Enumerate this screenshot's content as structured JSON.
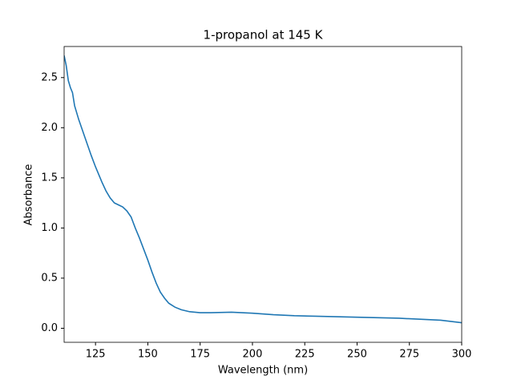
{
  "chart_data": {
    "type": "line",
    "title": "1-propanol at 145 K",
    "x_label": "Wavelength (nm)",
    "y_label": "Absorbance",
    "x": [
      110,
      111,
      112,
      113,
      114,
      115,
      117,
      120,
      123,
      125,
      128,
      130,
      132,
      134,
      136,
      138,
      140,
      142,
      144,
      146,
      148,
      150,
      152,
      154,
      156,
      158,
      160,
      163,
      166,
      170,
      175,
      180,
      190,
      200,
      210,
      220,
      230,
      240,
      250,
      260,
      270,
      280,
      290,
      300
    ],
    "series": [
      {
        "name": "1-propanol",
        "color": "#1f77b4",
        "values": [
          2.72,
          2.62,
          2.47,
          2.4,
          2.35,
          2.22,
          2.08,
          1.9,
          1.72,
          1.61,
          1.46,
          1.37,
          1.3,
          1.25,
          1.23,
          1.21,
          1.17,
          1.11,
          1.0,
          0.9,
          0.79,
          0.68,
          0.56,
          0.45,
          0.36,
          0.3,
          0.25,
          0.21,
          0.185,
          0.165,
          0.155,
          0.155,
          0.16,
          0.15,
          0.135,
          0.125,
          0.12,
          0.115,
          0.11,
          0.105,
          0.1,
          0.09,
          0.08,
          0.055
        ]
      }
    ],
    "xlim": [
      110,
      300
    ],
    "ylim": [
      -0.14,
      2.81
    ],
    "xticks": [
      125,
      150,
      175,
      200,
      225,
      250,
      275,
      300
    ],
    "yticks": [
      {
        "value": 0,
        "label": "0.0"
      },
      0.5,
      {
        "value": 1,
        "label": "1.0"
      },
      1.5,
      {
        "value": 2,
        "label": "2.0"
      },
      2.5
    ]
  }
}
